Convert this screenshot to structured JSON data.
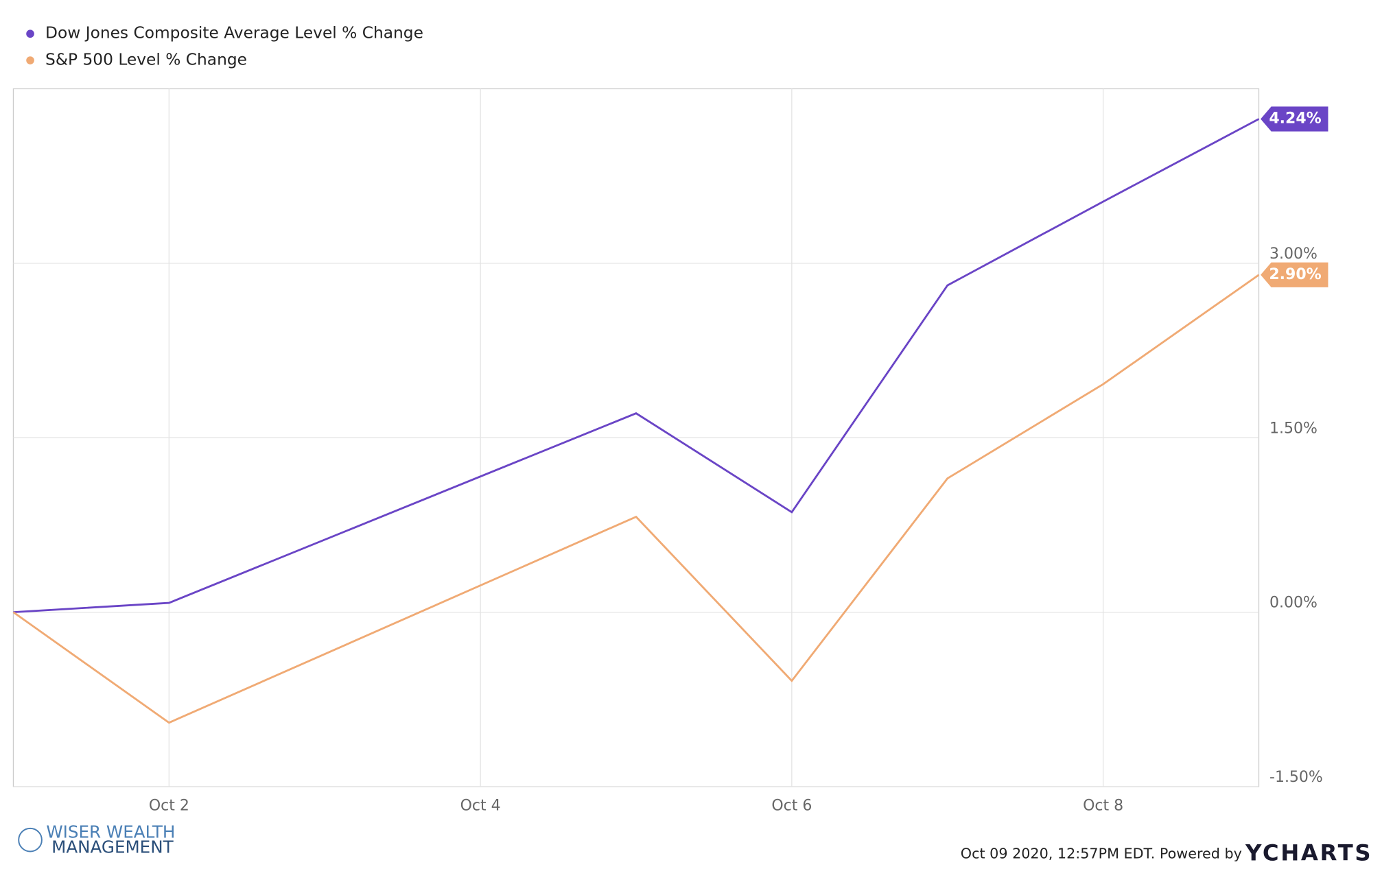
{
  "chart_data": {
    "type": "line",
    "x": [
      1,
      2,
      5,
      6,
      7,
      8,
      9
    ],
    "series": [
      {
        "name": "Dow Jones Composite Average Level % Change",
        "color": "#6a45c6",
        "values": [
          0,
          0.08,
          1.71,
          0.86,
          2.81,
          3.53,
          4.24
        ],
        "value_labels": [
          null,
          null,
          null,
          null,
          null,
          null,
          "4.24%"
        ]
      },
      {
        "name": "S&P 500 Level % Change",
        "color": "#f0aa74",
        "values": [
          0,
          -0.95,
          0.82,
          -0.59,
          1.15,
          1.96,
          2.9
        ],
        "value_labels": [
          null,
          null,
          null,
          null,
          null,
          null,
          "2.90%"
        ]
      }
    ],
    "xlim": [
      1,
      9
    ],
    "xticks": [
      {
        "value": 2,
        "label": "Oct 2"
      },
      {
        "value": 4,
        "label": "Oct 4"
      },
      {
        "value": 6,
        "label": "Oct 6"
      },
      {
        "value": 8,
        "label": "Oct 8"
      }
    ],
    "ylim": [
      -1.5,
      4.5
    ],
    "yticks": [
      {
        "value": -1.5,
        "label": "-1.50%"
      },
      {
        "value": 0,
        "label": "0.00%"
      },
      {
        "value": 1.5,
        "label": "1.50%"
      },
      {
        "value": 3,
        "label": "3.00%"
      }
    ],
    "grid": true,
    "legend": "top-left"
  },
  "branding": {
    "logo_line1": "WISER WEALTH",
    "logo_line2": "MANAGEMENT",
    "timestamp": "Oct 09 2020, 12:57PM EDT.  Powered by",
    "provider": "YCHARTS"
  }
}
